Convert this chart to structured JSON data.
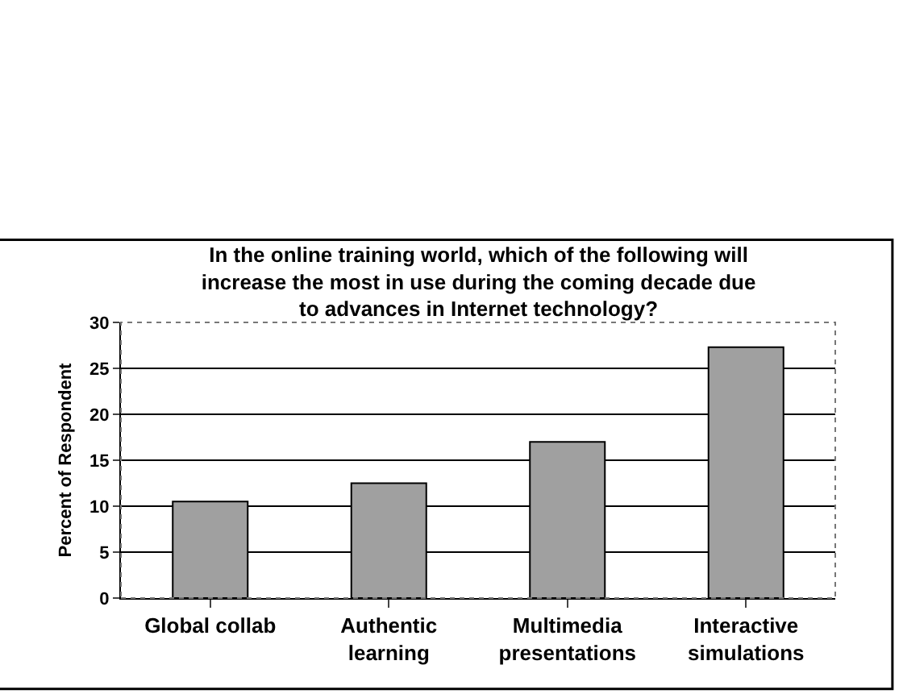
{
  "chart_data": {
    "type": "bar",
    "title": "In the online training world, which of the following will\nincrease the most in use during the coming decade due\nto advances in Internet technology?",
    "ylabel": "Percent of Respondent",
    "categories": [
      "Global collab",
      "Authentic\nlearning",
      "Multimedia\npresentations",
      "Interactive\nsimulations"
    ],
    "values": [
      10.5,
      12.5,
      17,
      27.3
    ],
    "color": "#a0a0a0",
    "ylim": [
      0,
      30
    ],
    "yticks": [
      0,
      5,
      10,
      15,
      20,
      25,
      30
    ],
    "grid": "y"
  }
}
